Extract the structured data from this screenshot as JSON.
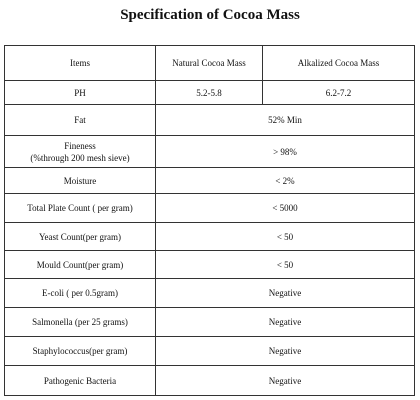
{
  "title": "Specification of Cocoa Mass",
  "table": {
    "header": [
      "Items",
      "Natural Cocoa Mass",
      "Alkalized Cocoa Mass"
    ],
    "rows": [
      {
        "item": "PH",
        "values": [
          "5.2-5.8",
          "6.2-7.2"
        ]
      },
      {
        "item": "Fat",
        "values": [
          "52% Min"
        ]
      },
      {
        "item": [
          "Fineness",
          "(%through 200 mesh sieve)"
        ],
        "values": [
          "> 98%"
        ]
      },
      {
        "item": "Moisture",
        "values": [
          "< 2%"
        ]
      },
      {
        "item": "Total Plate Count ( per gram)",
        "values": [
          "< 5000"
        ]
      },
      {
        "item": "Yeast Count(per gram)",
        "values": [
          "< 50"
        ]
      },
      {
        "item": "Mould Count(per gram)",
        "values": [
          "< 50"
        ]
      },
      {
        "item": "E-coli ( per 0.5gram)",
        "values": [
          "Negative"
        ]
      },
      {
        "item": "Salmonella (per 25 grams)",
        "values": [
          "Negative"
        ]
      },
      {
        "item": "Staphylococcus(per gram)",
        "values": [
          "Negative"
        ]
      },
      {
        "item": "Pathogenic Bacteria",
        "values": [
          "Negative"
        ]
      }
    ]
  }
}
